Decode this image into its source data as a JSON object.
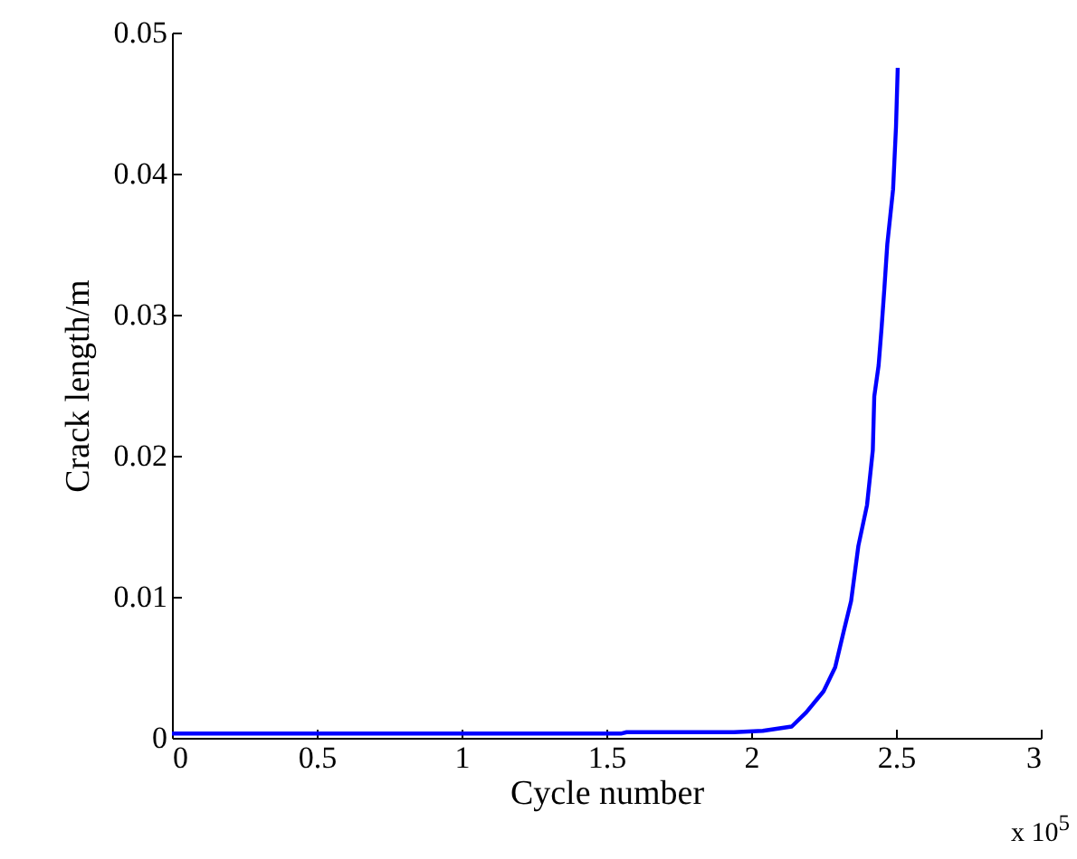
{
  "chart_data": {
    "type": "line",
    "xlabel": "Cycle number",
    "ylabel": "Crack length/m",
    "annotations": [
      "x 10$^{5}$"
    ],
    "series": [
      {
        "color": "#0000ff",
        "x": [
          0,
          0.5,
          1,
          1.55,
          1.57,
          1.94,
          2.04,
          2.14,
          2.19,
          2.25,
          2.29,
          2.32,
          2.345,
          2.37,
          2.4,
          2.42,
          2.425,
          2.44,
          2.45,
          2.46,
          2.47,
          2.49,
          2.5,
          2.506
        ],
        "values": [
          0.0003,
          0.0003,
          0.0003,
          0.0003,
          0.0004,
          0.0004,
          0.0005,
          0.0008,
          0.0018,
          0.0033,
          0.005,
          0.0076,
          0.0097,
          0.0136,
          0.0165,
          0.0204,
          0.0242,
          0.0264,
          0.029,
          0.0319,
          0.035,
          0.0389,
          0.0433,
          0.0475
        ]
      }
    ],
    "xlim": [
      0,
      3
    ],
    "xticks": [
      0,
      0.5,
      1,
      1.5,
      2,
      2.5,
      3
    ],
    "ylim": [
      0,
      0.05
    ],
    "yticks": [
      0,
      0.01,
      0.02,
      0.03,
      0.04,
      0.05
    ],
    "grid": false,
    "marker": "none",
    "line_style": "solid"
  }
}
